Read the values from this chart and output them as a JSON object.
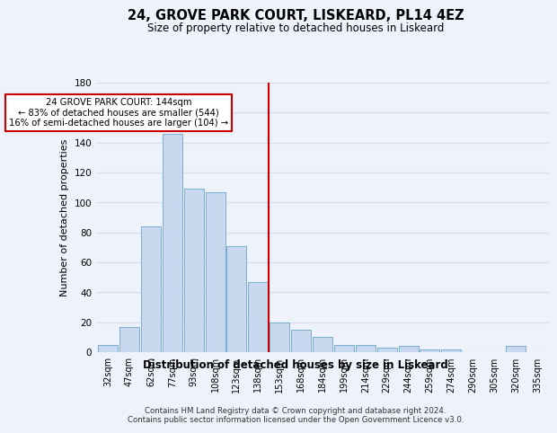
{
  "title1": "24, GROVE PARK COURT, LISKEARD, PL14 4EZ",
  "title2": "Size of property relative to detached houses in Liskeard",
  "xlabel": "Distribution of detached houses by size in Liskeard",
  "ylabel": "Number of detached properties",
  "categories": [
    "32sqm",
    "47sqm",
    "62sqm",
    "77sqm",
    "93sqm",
    "108sqm",
    "123sqm",
    "138sqm",
    "153sqm",
    "168sqm",
    "184sqm",
    "199sqm",
    "214sqm",
    "229sqm",
    "244sqm",
    "259sqm",
    "274sqm",
    "290sqm",
    "305sqm",
    "320sqm",
    "335sqm"
  ],
  "values": [
    5,
    17,
    84,
    146,
    109,
    107,
    71,
    47,
    20,
    15,
    10,
    5,
    5,
    3,
    4,
    2,
    2,
    0,
    0,
    4,
    0
  ],
  "bar_color": "#c8d8ee",
  "bar_edge_color": "#7aaed0",
  "vline_index": 8,
  "vline_color": "#cc0000",
  "annotation_line1": "24 GROVE PARK COURT: 144sqm",
  "annotation_line2": "← 83% of detached houses are smaller (544)",
  "annotation_line3": "16% of semi-detached houses are larger (104) →",
  "ylim": [
    0,
    180
  ],
  "yticks": [
    0,
    20,
    40,
    60,
    80,
    100,
    120,
    140,
    160,
    180
  ],
  "background_color": "#eef2fa",
  "grid_color": "#d8dff0",
  "footer1": "Contains HM Land Registry data © Crown copyright and database right 2024.",
  "footer2": "Contains public sector information licensed under the Open Government Licence v3.0."
}
